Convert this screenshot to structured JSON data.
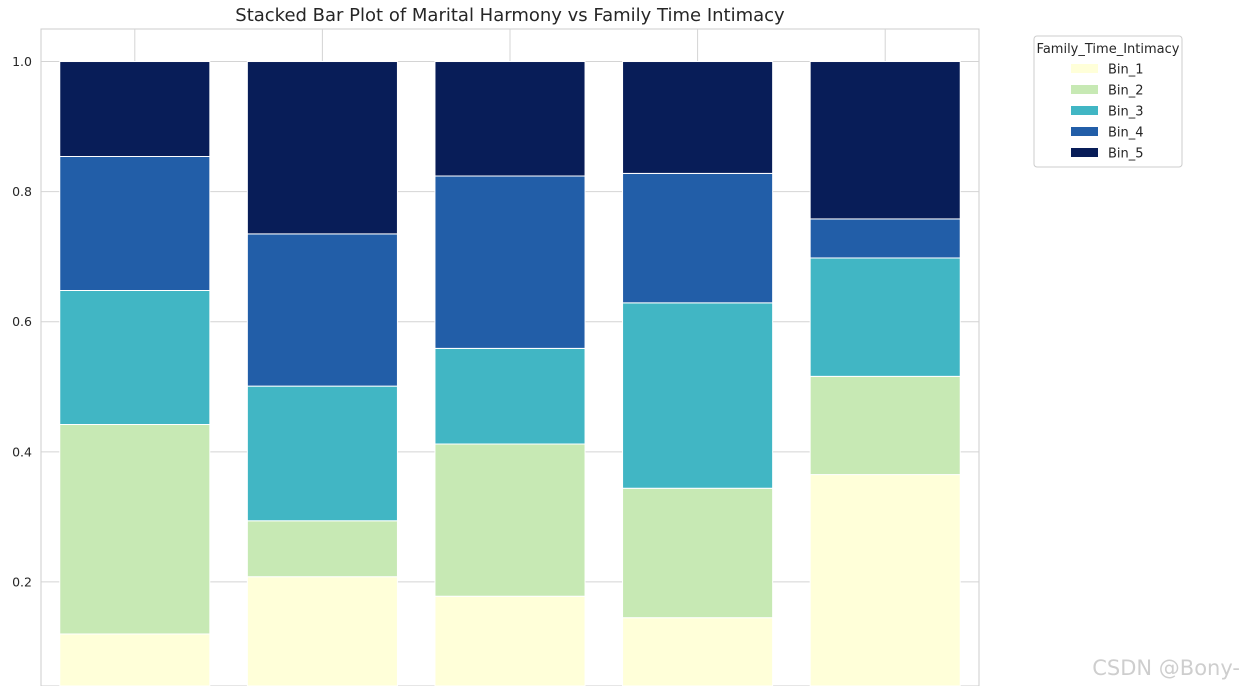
{
  "chart_data": {
    "type": "bar",
    "stacked": true,
    "title": "Stacked Bar Plot of Marital Harmony vs Family Time Intimacy",
    "xlabel": "",
    "ylabel": "",
    "ylim": [
      0.04,
      1.05
    ],
    "yticks": [
      "0.2",
      "0.4",
      "0.6",
      "0.8",
      "1.0"
    ],
    "ytick_values": [
      0.2,
      0.4,
      0.6,
      0.8,
      1.0
    ],
    "grid": true,
    "categories": [
      "",
      "",
      "",
      "",
      ""
    ],
    "legend": {
      "title": "Family_Time_Intimacy",
      "placement": "top-right, outside"
    },
    "series": [
      {
        "name": "Bin_1",
        "color": "#ffffd9",
        "values": [
          0.12,
          0.208,
          0.178,
          0.145,
          0.365
        ]
      },
      {
        "name": "Bin_2",
        "color": "#c7e9b4",
        "values": [
          0.322,
          0.086,
          0.234,
          0.199,
          0.151
        ]
      },
      {
        "name": "Bin_3",
        "color": "#41b6c4",
        "values": [
          0.206,
          0.207,
          0.147,
          0.285,
          0.182
        ]
      },
      {
        "name": "Bin_4",
        "color": "#225ea8",
        "values": [
          0.206,
          0.234,
          0.265,
          0.199,
          0.06
        ]
      },
      {
        "name": "Bin_5",
        "color": "#081d58",
        "values": [
          0.146,
          0.265,
          0.176,
          0.172,
          0.242
        ]
      }
    ]
  },
  "watermark": "CSDN @Bony-"
}
